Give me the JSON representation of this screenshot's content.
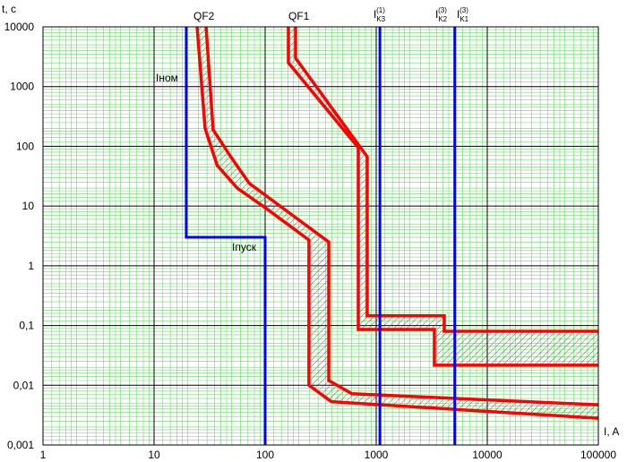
{
  "chart_data": {
    "type": "line",
    "log_x": true,
    "log_y": true,
    "grid": true,
    "xlabel": "I, A",
    "ylabel": "t, c",
    "xlim": [
      1,
      100000
    ],
    "xticks": [
      1,
      10,
      100,
      1000,
      10000,
      100000
    ],
    "ylim": [
      0.001,
      10000
    ],
    "yticks": [
      {
        "value": 0.001,
        "label": "0,001"
      },
      {
        "value": 0.01,
        "label": "0,01"
      },
      {
        "value": 0.1,
        "label": "0,1"
      },
      1,
      10,
      100,
      1000,
      10000
    ],
    "series": [
      {
        "name": "QF2",
        "color": "#ff0000",
        "hatch": true,
        "curves": [
          {
            "x": [
              24.4,
              28.8,
              37,
              56,
              100,
              248,
              248,
              395,
              100000
            ],
            "values": [
              10000,
              200,
              48,
              20,
              9.4,
              2.7,
              0.01,
              0.0053,
              0.0028
            ]
          },
          {
            "x": [
              29.4,
              34,
              49,
              72,
              226,
              374,
              374,
              606,
              100000
            ],
            "values": [
              10000,
              190,
              67,
              24,
              5,
              2.5,
              0.012,
              0.0072,
              0.0047
            ]
          }
        ]
      },
      {
        "name": "QF1",
        "color": "#ff0000",
        "hatch": true,
        "curves": [
          {
            "x": [
              162,
              162,
              690,
              690,
              3340,
              3340,
              100000
            ],
            "values": [
              10000,
              2500,
              95,
              0.086,
              0.086,
              0.0217,
              0.0217
            ]
          },
          {
            "x": [
              188,
              188,
              830,
              830,
              4100,
              4100,
              100000
            ],
            "values": [
              10000,
              3000,
              67,
              0.145,
              0.145,
              0.08,
              0.08
            ]
          }
        ]
      },
      {
        "color": "#0000ff",
        "curves": [
          {
            "x": [
              19.5,
              19.5,
              100,
              100
            ],
            "values": [
              10000,
              3,
              3,
              0.001
            ]
          }
        ]
      },
      {
        "color": "#0000ff",
        "curves": [
          {
            "x": [
              1080,
              1080
            ],
            "values": [
              0.001,
              10000
            ]
          }
        ]
      },
      {
        "color": "#0000ff",
        "curves": [
          {
            "x": [
              5100,
              5100
            ],
            "values": [
              0.001,
              10000
            ]
          }
        ]
      }
    ],
    "annotations": [
      {
        "text": "Iном"
      },
      {
        "text": "Iпуск"
      },
      {
        "main": "I",
        "sub": "K3",
        "sup": "(1)"
      },
      {
        "main": "I",
        "sub": "K2",
        "sup": "(3)"
      },
      {
        "main": "I",
        "sub": "K1",
        "sup": "(3)"
      }
    ]
  }
}
